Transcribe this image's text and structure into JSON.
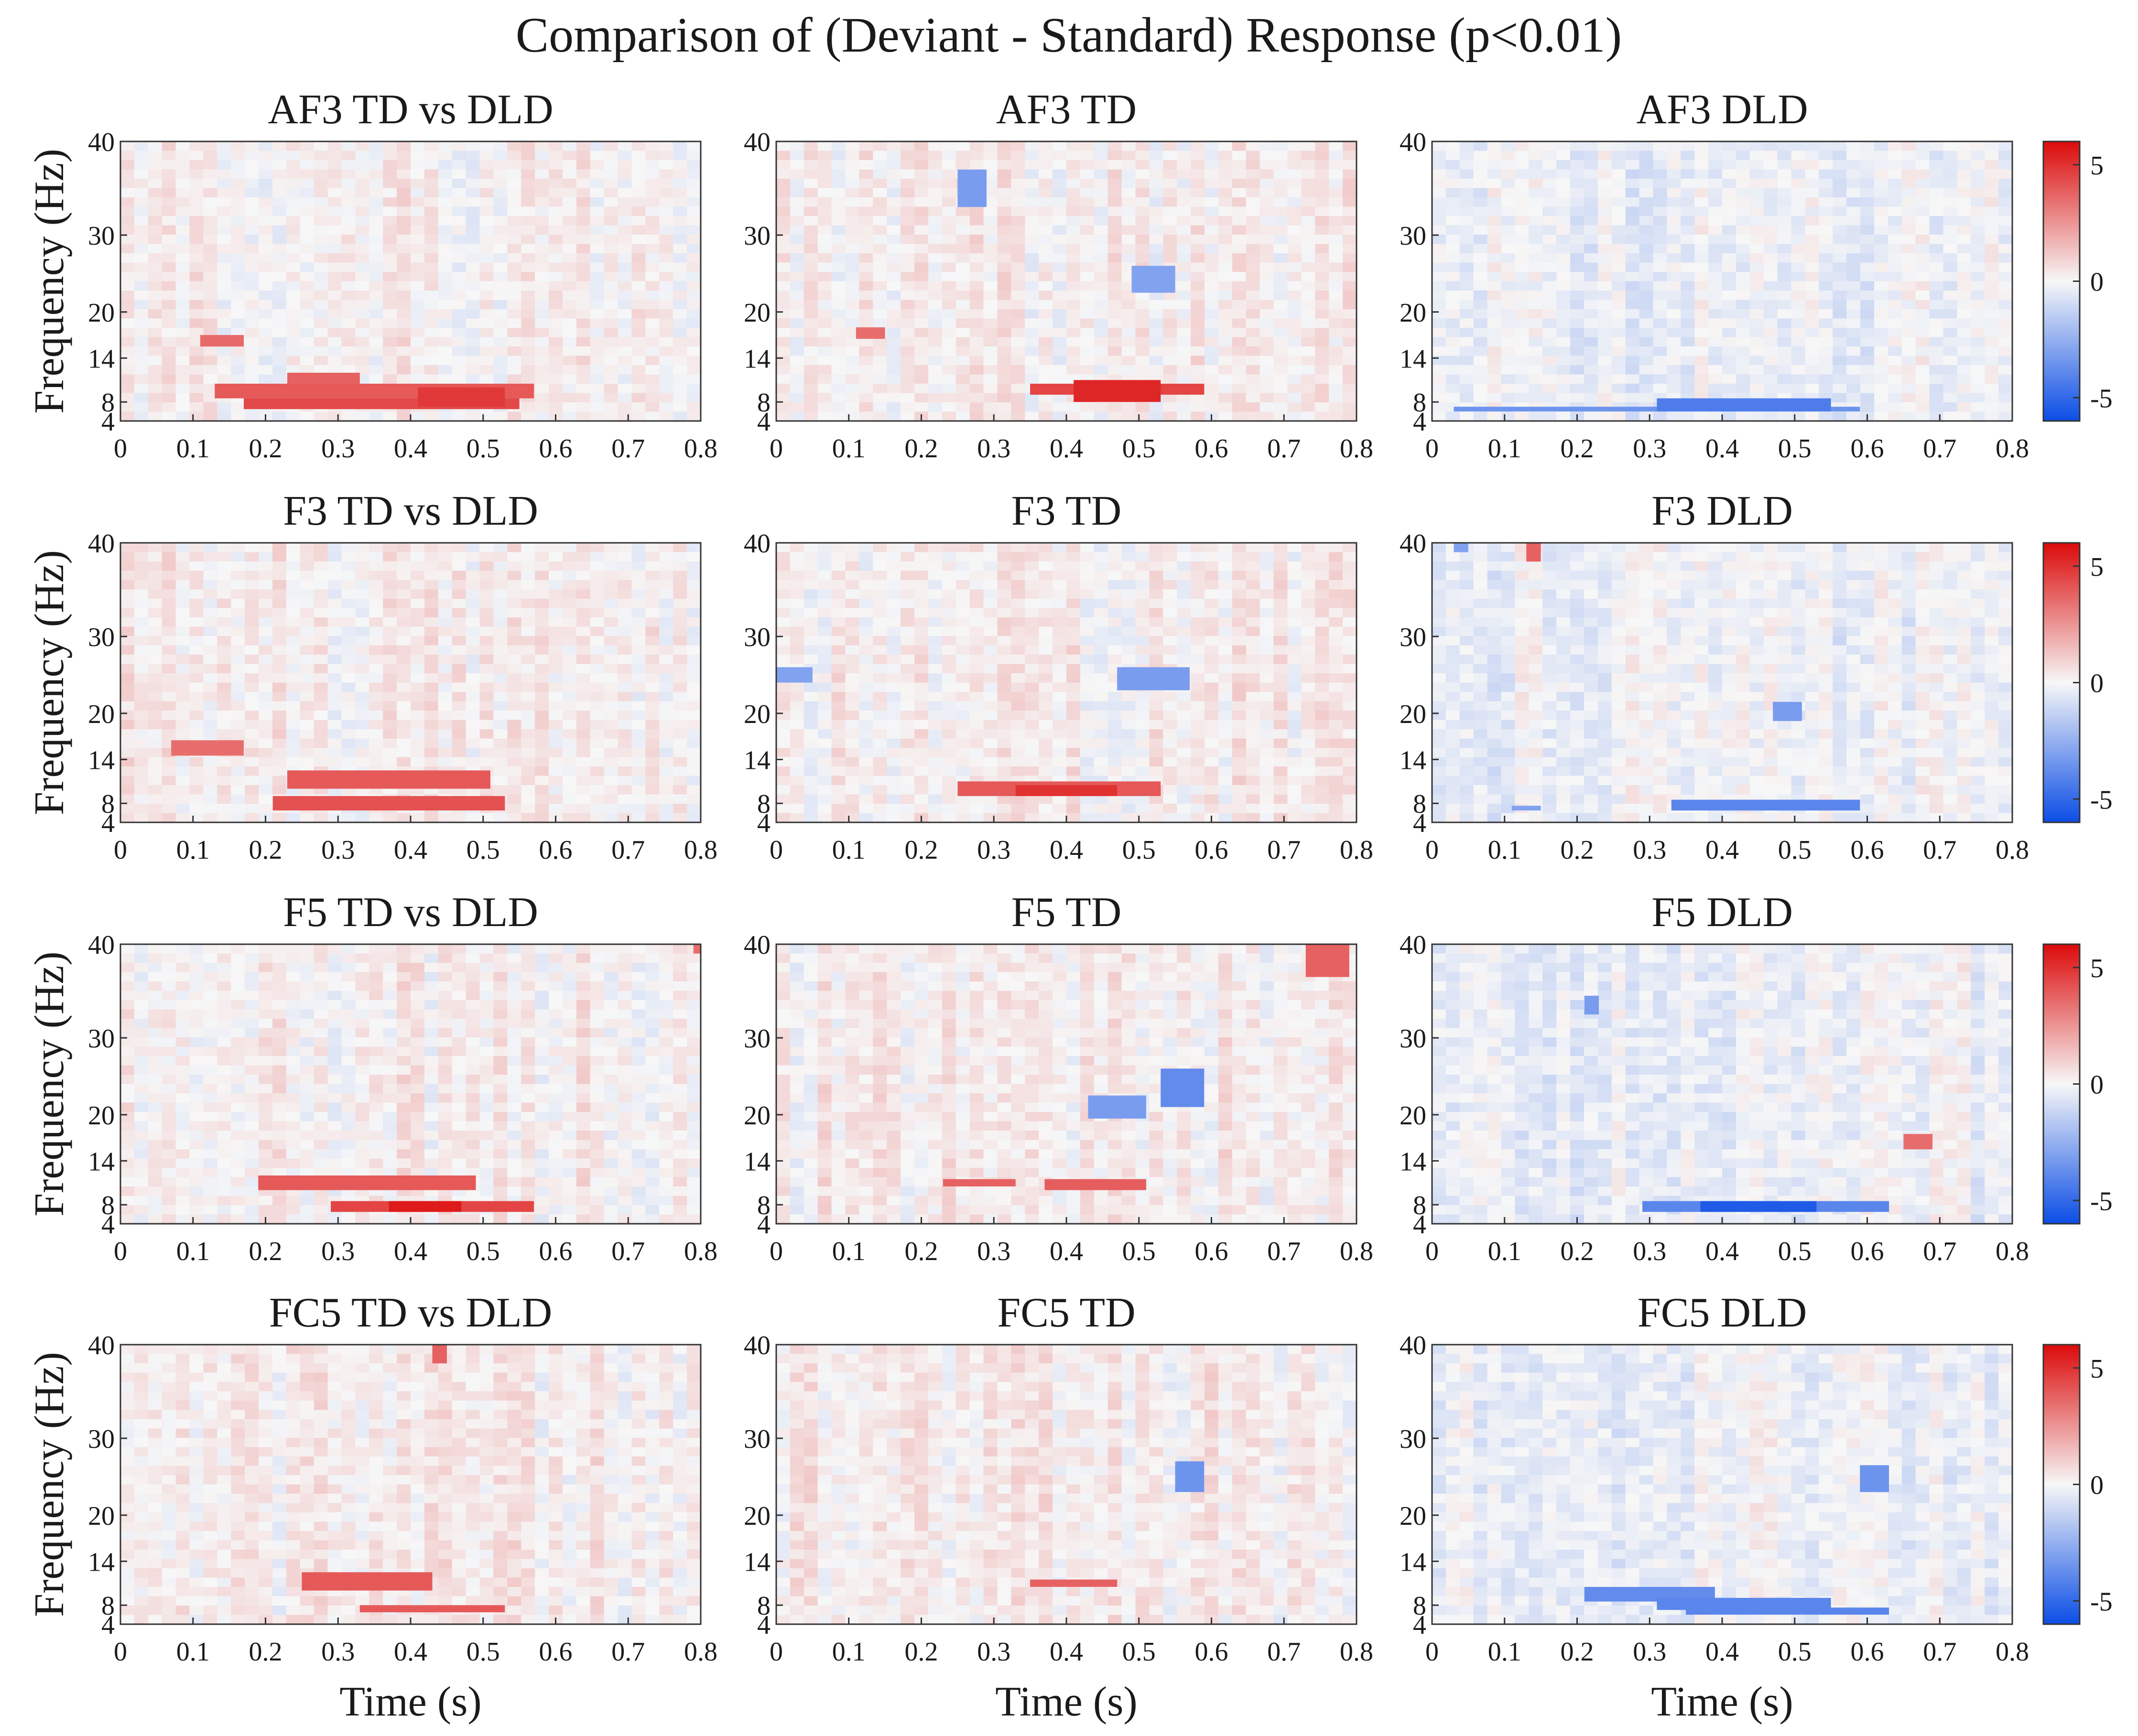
{
  "figure": {
    "title": "Comparison of (Deviant - Standard) Response (p<0.01)"
  },
  "colors": {
    "positive": "#dd2020",
    "negative": "#1f5fe0",
    "neutral": "#f7f7f7",
    "axis": "#333333"
  },
  "chart_data": {
    "type": "heatmap",
    "layout": "4x3 grid",
    "xlabel": "Time (s)",
    "ylabel": "Frequency (Hz)",
    "xlim": [
      0,
      0.8
    ],
    "ylim": [
      4,
      40
    ],
    "x_ticks": [
      "0",
      "0.1",
      "0.2",
      "0.3",
      "0.4",
      "0.5",
      "0.6",
      "0.7",
      "0.8"
    ],
    "y_ticks": [
      "4",
      "8",
      "14",
      "20",
      "30",
      "40"
    ],
    "colorbar": {
      "range": [
        -6,
        6
      ],
      "ticks": [
        "5",
        "0",
        "-5"
      ]
    },
    "panels": [
      {
        "title": "AF3 TD vs DLD",
        "significant_clusters": [
          {
            "t0": 0.11,
            "t1": 0.17,
            "f0": 15.5,
            "f1": 17,
            "value": 3.6
          },
          {
            "t0": 0.23,
            "t1": 0.33,
            "f0": 10.5,
            "f1": 12,
            "value": 3.8
          },
          {
            "t0": 0.13,
            "t1": 0.57,
            "f0": 8.5,
            "f1": 10.5,
            "value": 4.0
          },
          {
            "t0": 0.17,
            "t1": 0.55,
            "f0": 6.5,
            "f1": 8.5,
            "value": 4.4
          },
          {
            "t0": 0.41,
            "t1": 0.53,
            "f0": 7,
            "f1": 10,
            "value": 4.8
          }
        ]
      },
      {
        "title": "AF3 TD",
        "significant_clusters": [
          {
            "t0": 0.25,
            "t1": 0.29,
            "f0": 33,
            "f1": 37,
            "value": -3.2
          },
          {
            "t0": 0.49,
            "t1": 0.55,
            "f0": 22.5,
            "f1": 26,
            "value": -3.0
          },
          {
            "t0": 0.11,
            "t1": 0.15,
            "f0": 16.5,
            "f1": 18,
            "value": 3.5
          },
          {
            "t0": 0.35,
            "t1": 0.59,
            "f0": 9,
            "f1": 10.5,
            "value": 4.5
          },
          {
            "t0": 0.41,
            "t1": 0.53,
            "f0": 8,
            "f1": 11,
            "value": 5.3
          }
        ]
      },
      {
        "title": "AF3 DLD",
        "significant_clusters": [
          {
            "t0": 0.03,
            "t1": 0.59,
            "f0": 6,
            "f1": 7,
            "value": -3.5
          },
          {
            "t0": 0.31,
            "t1": 0.55,
            "f0": 6,
            "f1": 8.5,
            "value": -4.3
          }
        ]
      },
      {
        "title": "F3 TD vs DLD",
        "significant_clusters": [
          {
            "t0": 0.07,
            "t1": 0.17,
            "f0": 14.5,
            "f1": 16.5,
            "value": 3.5
          },
          {
            "t0": 0.23,
            "t1": 0.51,
            "f0": 10,
            "f1": 12.5,
            "value": 4.0
          },
          {
            "t0": 0.21,
            "t1": 0.53,
            "f0": 6.5,
            "f1": 9,
            "value": 4.2
          }
        ]
      },
      {
        "title": "F3 TD",
        "significant_clusters": [
          {
            "t0": 0.0,
            "t1": 0.05,
            "f0": 24,
            "f1": 26,
            "value": -3.0
          },
          {
            "t0": 0.47,
            "t1": 0.57,
            "f0": 23,
            "f1": 26,
            "value": -3.2
          },
          {
            "t0": 0.25,
            "t1": 0.53,
            "f0": 9,
            "f1": 11,
            "value": 4.0
          },
          {
            "t0": 0.33,
            "t1": 0.47,
            "f0": 9,
            "f1": 10.5,
            "value": 5.0
          }
        ]
      },
      {
        "title": "F3 DLD",
        "significant_clusters": [
          {
            "t0": 0.03,
            "t1": 0.05,
            "f0": 39,
            "f1": 40,
            "value": -3.0
          },
          {
            "t0": 0.13,
            "t1": 0.15,
            "f0": 38,
            "f1": 40,
            "value": 3.8
          },
          {
            "t0": 0.47,
            "t1": 0.51,
            "f0": 19,
            "f1": 21.5,
            "value": -3.2
          },
          {
            "t0": 0.11,
            "t1": 0.15,
            "f0": 6.5,
            "f1": 7.5,
            "value": -3.0
          },
          {
            "t0": 0.33,
            "t1": 0.59,
            "f0": 6.5,
            "f1": 8.5,
            "value": -4.0
          }
        ]
      },
      {
        "title": "F5 TD vs DLD",
        "significant_clusters": [
          {
            "t0": 0.79,
            "t1": 0.8,
            "f0": 39,
            "f1": 40,
            "value": 3.5
          },
          {
            "t0": 0.19,
            "t1": 0.49,
            "f0": 10,
            "f1": 12,
            "value": 4.0
          },
          {
            "t0": 0.29,
            "t1": 0.57,
            "f0": 6.5,
            "f1": 8.5,
            "value": 4.5
          },
          {
            "t0": 0.37,
            "t1": 0.47,
            "f0": 6.5,
            "f1": 8.5,
            "value": 5.6
          }
        ]
      },
      {
        "title": "F5 TD",
        "significant_clusters": [
          {
            "t0": 0.73,
            "t1": 0.79,
            "f0": 36.5,
            "f1": 40,
            "value": 3.8
          },
          {
            "t0": 0.43,
            "t1": 0.51,
            "f0": 19.5,
            "f1": 22.5,
            "value": -3.2
          },
          {
            "t0": 0.53,
            "t1": 0.59,
            "f0": 21,
            "f1": 26,
            "value": -3.8
          },
          {
            "t0": 0.23,
            "t1": 0.33,
            "f0": 10.5,
            "f1": 11.5,
            "value": 3.8
          },
          {
            "t0": 0.37,
            "t1": 0.51,
            "f0": 10,
            "f1": 11.5,
            "value": 3.9
          }
        ]
      },
      {
        "title": "F5 DLD",
        "significant_clusters": [
          {
            "t0": 0.21,
            "t1": 0.23,
            "f0": 32.5,
            "f1": 34.5,
            "value": -3.2
          },
          {
            "t0": 0.65,
            "t1": 0.69,
            "f0": 15.5,
            "f1": 17.5,
            "value": 3.5
          },
          {
            "t0": 0.29,
            "t1": 0.63,
            "f0": 6.5,
            "f1": 8.5,
            "value": -4.0
          },
          {
            "t0": 0.37,
            "t1": 0.53,
            "f0": 6.5,
            "f1": 8.5,
            "value": -5.5
          }
        ]
      },
      {
        "title": "FC5 TD vs DLD",
        "significant_clusters": [
          {
            "t0": 0.43,
            "t1": 0.45,
            "f0": 38,
            "f1": 40,
            "value": 3.8
          },
          {
            "t0": 0.25,
            "t1": 0.43,
            "f0": 10,
            "f1": 12.5,
            "value": 4.0
          },
          {
            "t0": 0.33,
            "t1": 0.53,
            "f0": 6.5,
            "f1": 8,
            "value": 4.0
          }
        ]
      },
      {
        "title": "FC5 TD",
        "significant_clusters": [
          {
            "t0": 0.55,
            "t1": 0.59,
            "f0": 23,
            "f1": 27,
            "value": -3.5
          },
          {
            "t0": 0.35,
            "t1": 0.47,
            "f0": 10.5,
            "f1": 11.5,
            "value": 3.8
          }
        ]
      },
      {
        "title": "FC5 DLD",
        "significant_clusters": [
          {
            "t0": 0.59,
            "t1": 0.63,
            "f0": 23,
            "f1": 26.5,
            "value": -3.5
          },
          {
            "t0": 0.21,
            "t1": 0.39,
            "f0": 8.5,
            "f1": 10.5,
            "value": -3.8
          },
          {
            "t0": 0.31,
            "t1": 0.55,
            "f0": 7,
            "f1": 9,
            "value": -4.0
          },
          {
            "t0": 0.35,
            "t1": 0.63,
            "f0": 6,
            "f1": 7.5,
            "value": -4.0
          }
        ]
      }
    ]
  }
}
